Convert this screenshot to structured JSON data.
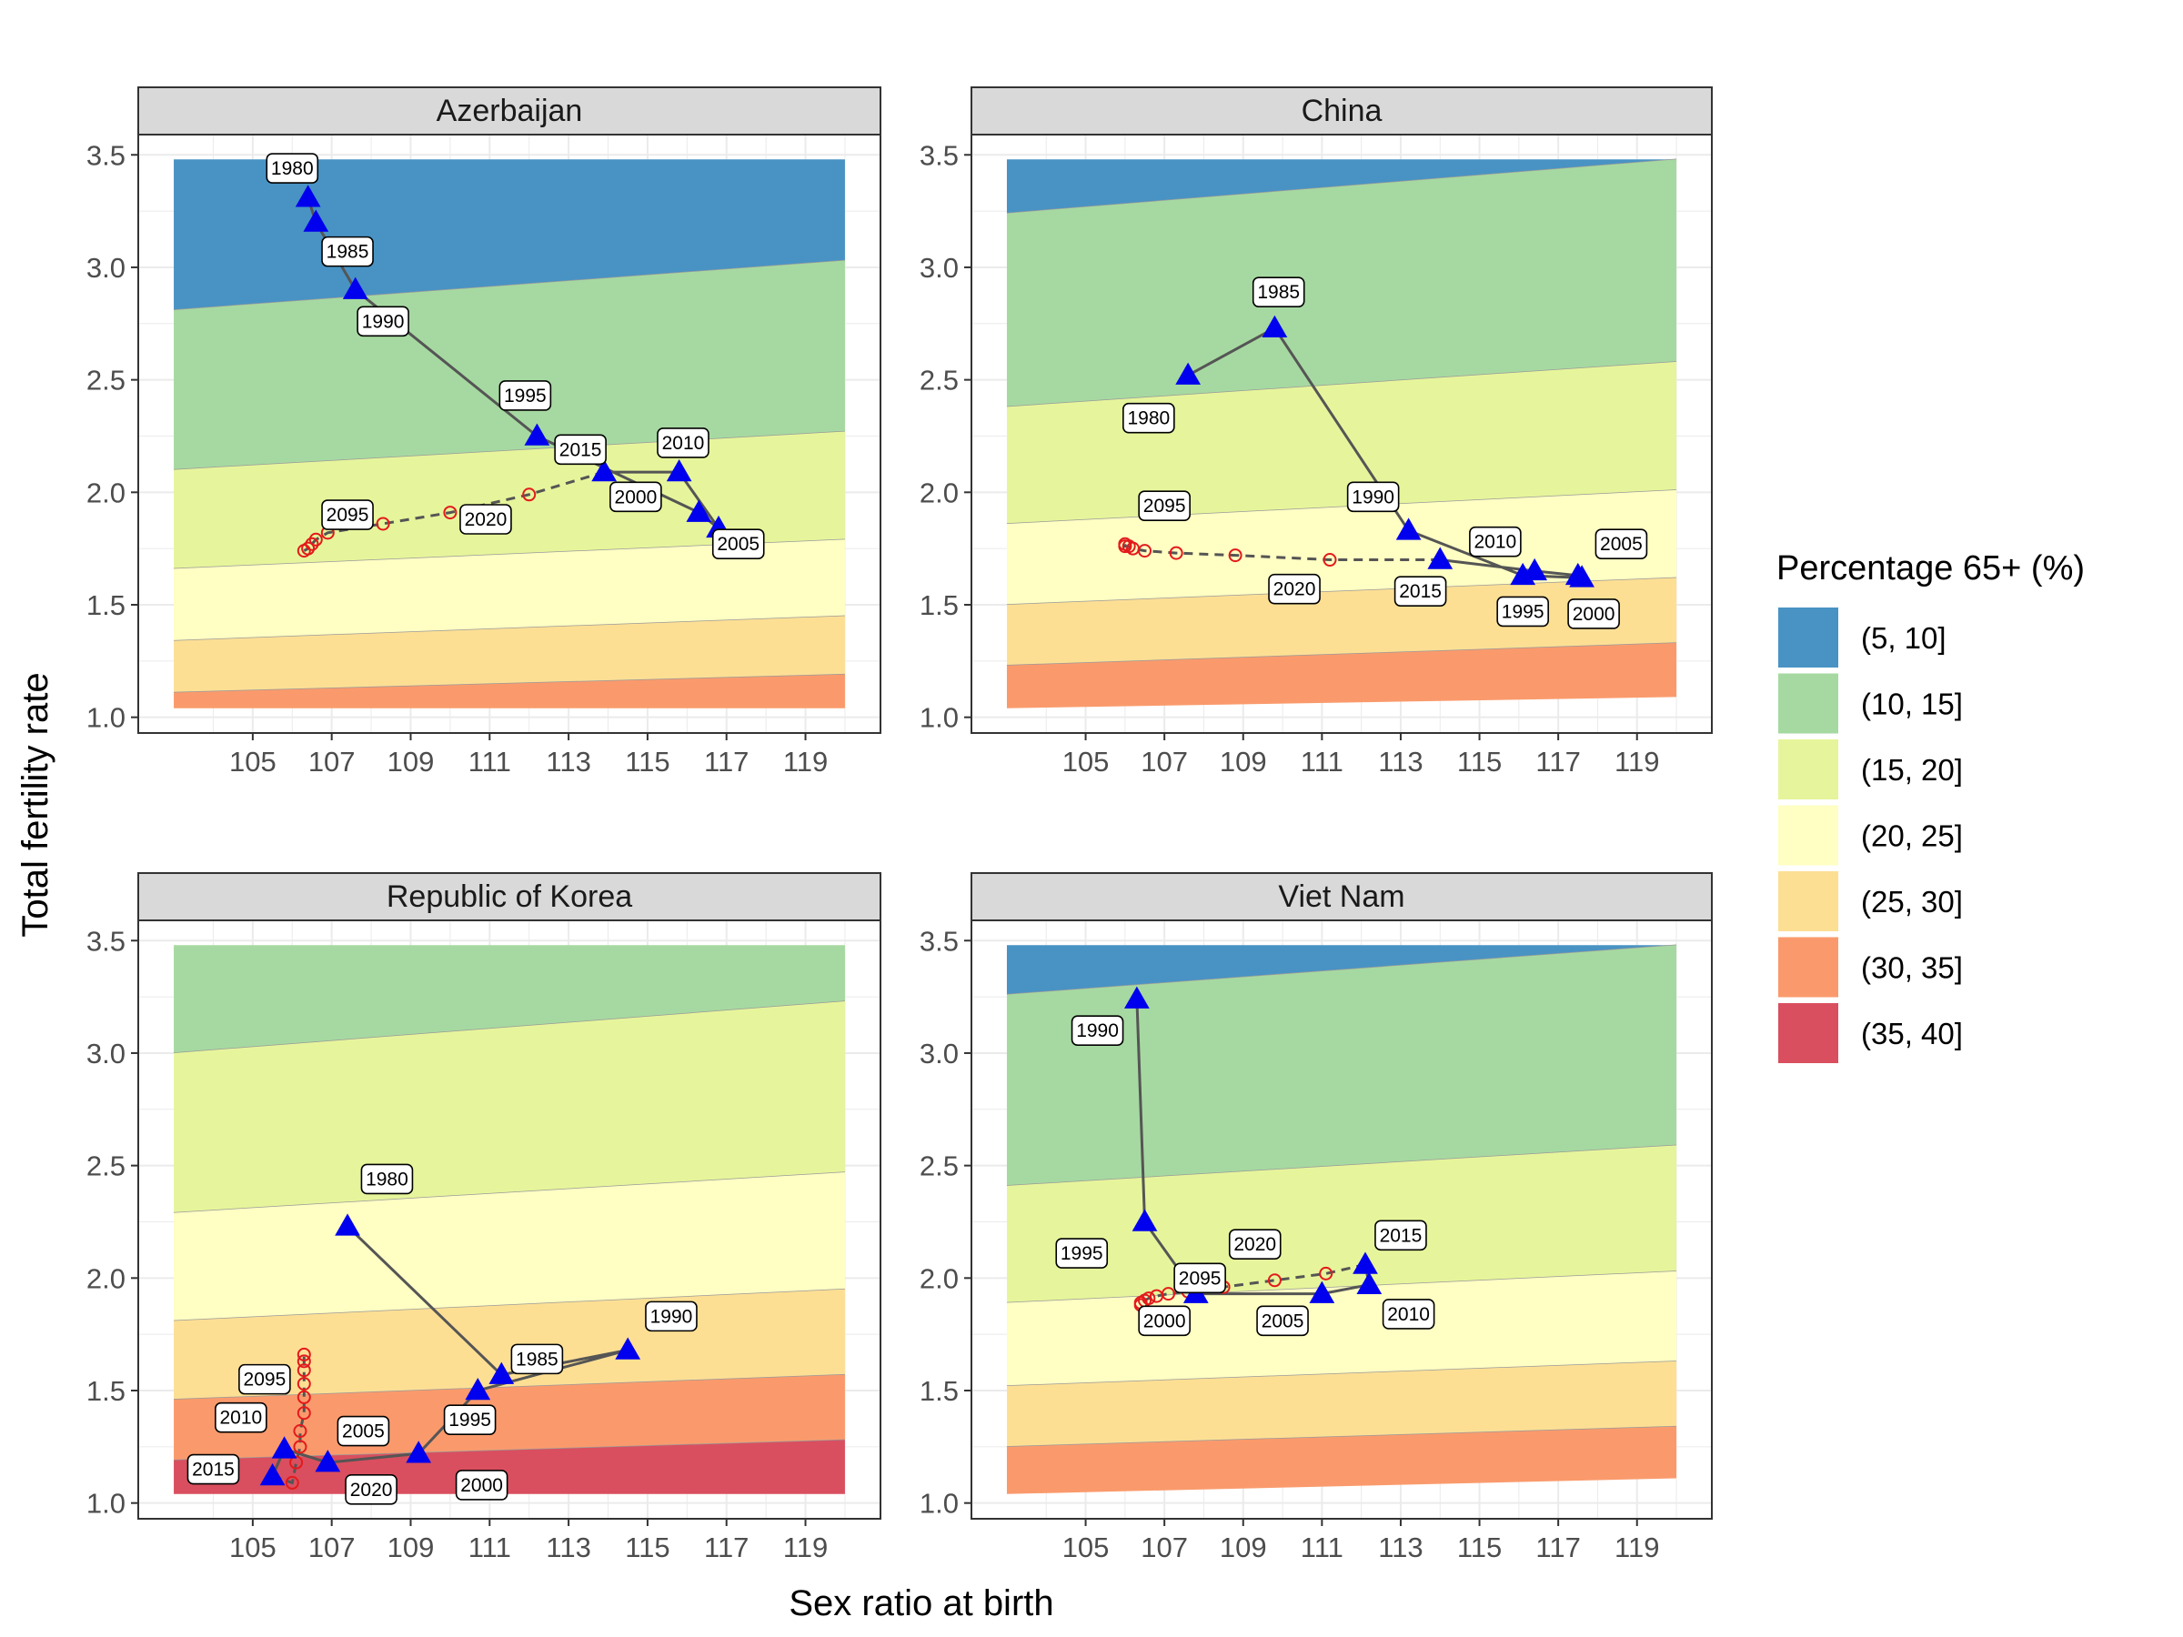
{
  "figure": {
    "xlabel": "Sex ratio at birth",
    "ylabel": "Total fertility rate",
    "legend": {
      "title": "Percentage 65+ (%)",
      "position": "right",
      "items": [
        {
          "label": "(5, 10]",
          "color": "#4893C4"
        },
        {
          "label": "(10, 15]",
          "color": "#A6D9A1"
        },
        {
          "label": "(15, 20]",
          "color": "#E6F59B"
        },
        {
          "label": "(20, 25]",
          "color": "#FFFEC3"
        },
        {
          "label": "(25, 30]",
          "color": "#FDDF94"
        },
        {
          "label": "(30, 35]",
          "color": "#FA9A6C"
        },
        {
          "label": "(35, 40]",
          "color": "#D94F5F"
        }
      ]
    }
  },
  "chart_data": [
    {
      "type": "scatter",
      "title": "Azerbaijan",
      "xlim": [
        103,
        120
      ],
      "ylim": [
        1.04,
        3.48
      ],
      "xticks": [
        105,
        107,
        109,
        111,
        113,
        115,
        117,
        119
      ],
      "yticks": [
        1.0,
        1.5,
        2.0,
        2.5,
        3.0,
        3.5
      ],
      "bands": [
        {
          "bin": "(5, 10]",
          "lower": [
            2.81,
            3.03
          ]
        },
        {
          "bin": "(10, 15]",
          "lower": [
            2.1,
            2.27
          ]
        },
        {
          "bin": "(15, 20]",
          "lower": [
            1.66,
            1.79
          ]
        },
        {
          "bin": "(20, 25]",
          "lower": [
            1.34,
            1.45
          ]
        },
        {
          "bin": "(25, 30]",
          "lower": [
            1.11,
            1.19
          ]
        },
        {
          "bin": "(30, 35]",
          "lower": [
            1.04,
            1.04
          ]
        }
      ],
      "observed": [
        {
          "year": "1980",
          "x": 106.4,
          "y": 3.31
        },
        {
          "year": "1985",
          "x": 106.6,
          "y": 3.2
        },
        {
          "year": "1990",
          "x": 107.6,
          "y": 2.9
        },
        {
          "year": "1995",
          "x": 112.2,
          "y": 2.25
        },
        {
          "year": "2000",
          "x": 116.3,
          "y": 1.91
        },
        {
          "year": "2005",
          "x": 116.8,
          "y": 1.84
        },
        {
          "year": "2010",
          "x": 115.8,
          "y": 2.09
        },
        {
          "year": "2015",
          "x": 113.9,
          "y": 2.09
        }
      ],
      "projected_x": [
        112.0,
        110.0,
        108.3,
        106.9,
        106.6,
        106.5,
        106.4,
        106.3
      ],
      "projected_y": [
        1.99,
        1.91,
        1.86,
        1.82,
        1.79,
        1.77,
        1.75,
        1.74
      ],
      "label_years": [
        "1980",
        "1985",
        "1990",
        "1995",
        "2000",
        "2005",
        "2010",
        "2015",
        "2020",
        "2095"
      ],
      "label_x": [
        106.0,
        107.4,
        108.3,
        111.9,
        114.7,
        117.3,
        115.9,
        113.3,
        110.9,
        107.4
      ],
      "label_y": [
        3.44,
        3.07,
        2.76,
        2.43,
        1.98,
        1.77,
        2.22,
        2.19,
        1.88,
        1.9
      ]
    },
    {
      "type": "scatter",
      "title": "China",
      "xlim": [
        103,
        120
      ],
      "ylim": [
        1.04,
        3.48
      ],
      "xticks": [
        105,
        107,
        109,
        111,
        113,
        115,
        117,
        119
      ],
      "yticks": [
        1.0,
        1.5,
        2.0,
        2.5,
        3.0,
        3.5
      ],
      "bands": [
        {
          "bin": "(5, 10]",
          "lower": [
            3.24,
            3.48
          ]
        },
        {
          "bin": "(10, 15]",
          "lower": [
            2.38,
            2.58
          ]
        },
        {
          "bin": "(15, 20]",
          "lower": [
            1.86,
            2.01
          ]
        },
        {
          "bin": "(20, 25]",
          "lower": [
            1.5,
            1.62
          ]
        },
        {
          "bin": "(25, 30]",
          "lower": [
            1.23,
            1.33
          ]
        },
        {
          "bin": "(30, 35]",
          "lower": [
            1.04,
            1.09
          ]
        }
      ],
      "observed": [
        {
          "year": "1980",
          "x": 107.6,
          "y": 2.52
        },
        {
          "year": "1985",
          "x": 109.8,
          "y": 2.73
        },
        {
          "year": "1990",
          "x": 113.2,
          "y": 1.83
        },
        {
          "year": "1995",
          "x": 116.1,
          "y": 1.63
        },
        {
          "year": "2000",
          "x": 117.6,
          "y": 1.62
        },
        {
          "year": "2005",
          "x": 117.5,
          "y": 1.63
        },
        {
          "year": "2010",
          "x": 116.4,
          "y": 1.65
        },
        {
          "year": "2015",
          "x": 114.0,
          "y": 1.7
        }
      ],
      "projected_x": [
        111.2,
        108.8,
        107.3,
        106.5,
        106.2,
        106.1,
        106.0,
        106.0
      ],
      "projected_y": [
        1.7,
        1.72,
        1.73,
        1.74,
        1.75,
        1.76,
        1.76,
        1.77
      ],
      "label_years": [
        "1980",
        "1985",
        "1990",
        "1995",
        "2000",
        "2005",
        "2010",
        "2015",
        "2020",
        "2095"
      ],
      "label_x": [
        106.6,
        109.9,
        112.3,
        116.1,
        117.9,
        118.6,
        115.4,
        113.5,
        110.3,
        107.0
      ],
      "label_y": [
        2.33,
        2.89,
        1.98,
        1.47,
        1.46,
        1.77,
        1.78,
        1.56,
        1.57,
        1.94
      ]
    },
    {
      "type": "scatter",
      "title": "Republic of Korea",
      "xlim": [
        103,
        120
      ],
      "ylim": [
        1.04,
        3.48
      ],
      "xticks": [
        105,
        107,
        109,
        111,
        113,
        115,
        117,
        119
      ],
      "yticks": [
        1.0,
        1.5,
        2.0,
        2.5,
        3.0,
        3.5
      ],
      "bands": [
        {
          "bin": "(10, 15]",
          "lower": [
            3.0,
            3.23
          ]
        },
        {
          "bin": "(15, 20]",
          "lower": [
            2.29,
            2.47
          ]
        },
        {
          "bin": "(20, 25]",
          "lower": [
            1.81,
            1.95
          ]
        },
        {
          "bin": "(25, 30]",
          "lower": [
            1.46,
            1.57
          ]
        },
        {
          "bin": "(30, 35]",
          "lower": [
            1.19,
            1.28
          ]
        },
        {
          "bin": "(35, 40]",
          "lower": [
            1.04,
            1.04
          ]
        }
      ],
      "observed": [
        {
          "year": "1980",
          "x": 107.4,
          "y": 2.23
        },
        {
          "year": "1985",
          "x": 111.3,
          "y": 1.57
        },
        {
          "year": "1990",
          "x": 114.5,
          "y": 1.68
        },
        {
          "year": "1995",
          "x": 110.7,
          "y": 1.5
        },
        {
          "year": "2000",
          "x": 109.2,
          "y": 1.22
        },
        {
          "year": "2005",
          "x": 106.9,
          "y": 1.18
        },
        {
          "year": "2010",
          "x": 105.8,
          "y": 1.24
        },
        {
          "year": "2015",
          "x": 105.5,
          "y": 1.12
        }
      ],
      "projected_x": [
        106.0,
        106.1,
        106.2,
        106.2,
        106.3,
        106.3,
        106.3,
        106.3,
        106.3,
        106.3
      ],
      "projected_y": [
        1.09,
        1.18,
        1.25,
        1.32,
        1.4,
        1.47,
        1.53,
        1.59,
        1.63,
        1.66
      ],
      "label_years": [
        "1980",
        "1985",
        "1990",
        "1995",
        "2000",
        "2005",
        "2010",
        "2015",
        "2020",
        "2095"
      ],
      "label_x": [
        108.4,
        112.2,
        115.6,
        110.5,
        110.8,
        107.8,
        104.7,
        104.0,
        108.0,
        105.3
      ],
      "label_y": [
        2.44,
        1.64,
        1.83,
        1.37,
        1.08,
        1.32,
        1.38,
        1.15,
        1.06,
        1.55
      ]
    },
    {
      "type": "scatter",
      "title": "Viet Nam",
      "xlim": [
        103,
        120
      ],
      "ylim": [
        1.04,
        3.48
      ],
      "xticks": [
        105,
        107,
        109,
        111,
        113,
        115,
        117,
        119
      ],
      "yticks": [
        1.0,
        1.5,
        2.0,
        2.5,
        3.0,
        3.5
      ],
      "bands": [
        {
          "bin": "(5, 10]",
          "lower": [
            3.26,
            3.48
          ]
        },
        {
          "bin": "(10, 15]",
          "lower": [
            2.41,
            2.59
          ]
        },
        {
          "bin": "(15, 20]",
          "lower": [
            1.89,
            2.03
          ]
        },
        {
          "bin": "(20, 25]",
          "lower": [
            1.52,
            1.63
          ]
        },
        {
          "bin": "(25, 30]",
          "lower": [
            1.25,
            1.34
          ]
        },
        {
          "bin": "(30, 35]",
          "lower": [
            1.04,
            1.11
          ]
        }
      ],
      "observed": [
        {
          "year": "1990",
          "x": 106.3,
          "y": 3.24
        },
        {
          "year": "1995",
          "x": 106.5,
          "y": 2.25
        },
        {
          "year": "2000",
          "x": 107.8,
          "y": 1.93
        },
        {
          "year": "2005",
          "x": 111.0,
          "y": 1.93
        },
        {
          "year": "2010",
          "x": 112.2,
          "y": 1.97
        },
        {
          "year": "2015",
          "x": 112.1,
          "y": 2.06
        }
      ],
      "projected_x": [
        111.1,
        109.8,
        108.5,
        107.6,
        107.1,
        106.8,
        106.6,
        106.5,
        106.4,
        106.4
      ],
      "projected_y": [
        2.02,
        1.99,
        1.96,
        1.94,
        1.93,
        1.92,
        1.91,
        1.9,
        1.89,
        1.88
      ],
      "label_years": [
        "1990",
        "1995",
        "2000",
        "2005",
        "2010",
        "2015",
        "2020",
        "2095"
      ],
      "label_x": [
        105.3,
        104.9,
        107.0,
        110.0,
        113.2,
        113.0,
        109.3,
        107.9
      ],
      "label_y": [
        3.1,
        2.11,
        1.81,
        1.81,
        1.84,
        2.19,
        2.15,
        2.0
      ]
    }
  ]
}
